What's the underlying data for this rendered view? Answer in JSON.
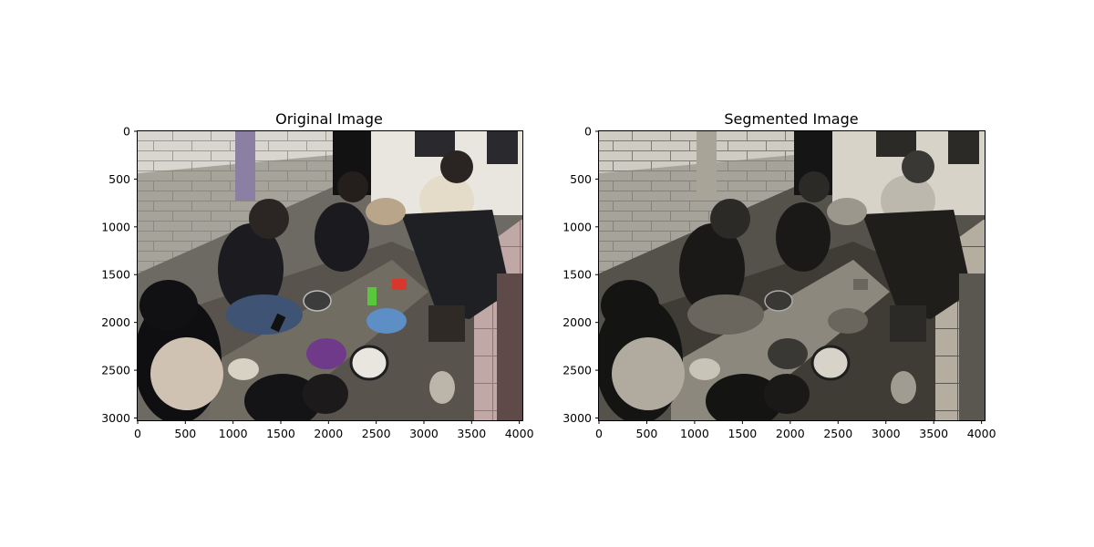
{
  "chart_data": [
    {
      "type": "image",
      "title": "Original Image",
      "xlim": [
        0,
        4032
      ],
      "ylim": [
        3024,
        0
      ],
      "xticks": [
        0,
        500,
        1000,
        1500,
        2000,
        2500,
        3000,
        3500,
        4000
      ],
      "yticks": [
        0,
        500,
        1000,
        1500,
        2000,
        2500,
        3000
      ],
      "grid": false
    },
    {
      "type": "image",
      "title": "Segmented Image",
      "xlim": [
        0,
        4032
      ],
      "ylim": [
        3024,
        0
      ],
      "xticks": [
        0,
        500,
        1000,
        1500,
        2000,
        2500,
        3000,
        3500,
        4000
      ],
      "yticks": [
        0,
        500,
        1000,
        1500,
        2000,
        2500,
        3000
      ],
      "grid": false
    }
  ]
}
